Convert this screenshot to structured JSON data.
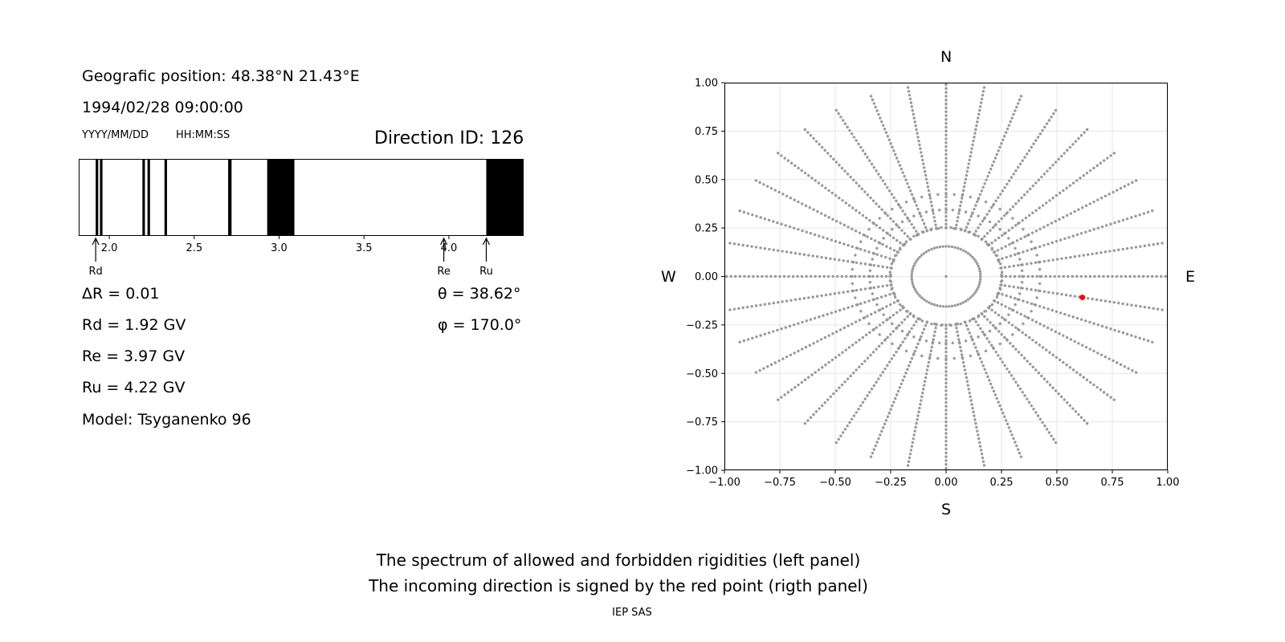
{
  "left_panel": {
    "position": "Geografic position: 48.38°N 21.43°E",
    "datetime": "1994/02/28 09:00:00",
    "date_format": "YYYY/MM/DD",
    "time_format": "HH:MM:SS",
    "direction_id": "Direction ID: 126",
    "delta_r": "ΔR = 0.01",
    "rd": "Rd = 1.92 GV",
    "re": "Re = 3.97 GV",
    "ru": "Ru = 4.22 GV",
    "model": "Model: Tsyganenko 96",
    "theta": "θ = 38.62°",
    "phi": "φ = 170.0°",
    "markers": [
      {
        "label": "Rd",
        "value": 1.92
      },
      {
        "label": "Re",
        "value": 3.97
      },
      {
        "label": "Ru",
        "value": 4.22
      }
    ]
  },
  "right_panel": {
    "north": "N",
    "south": "S",
    "west": "W",
    "east": "E"
  },
  "caption": {
    "line1": "The spectrum of allowed and forbidden rigidities (left panel)",
    "line2": "The incoming direction is signed by the red point (rigth panel)",
    "credit": "IEP SAS"
  },
  "chart_data": [
    {
      "type": "bar",
      "xlim": [
        1.82,
        4.44
      ],
      "xticks": [
        "2.0",
        "2.5",
        "3.0",
        "3.5",
        "4.0"
      ],
      "xtick_values": [
        2.0,
        2.5,
        3.0,
        3.5,
        4.0
      ],
      "forbidden_bands": [
        [
          1.92,
          1.935
        ],
        [
          1.945,
          1.96
        ],
        [
          2.195,
          2.21
        ],
        [
          2.225,
          2.24
        ],
        [
          2.325,
          2.34
        ],
        [
          2.7,
          2.72
        ],
        [
          2.93,
          3.09
        ],
        [
          4.22,
          4.44
        ]
      ],
      "colors": {
        "forbidden": "#000000",
        "allowed": "#ffffff"
      }
    },
    {
      "type": "scatter",
      "xlim": [
        -1.0,
        1.0
      ],
      "ylim": [
        -1.0,
        1.0
      ],
      "xticks": [
        "−1.00",
        "−0.75",
        "−0.50",
        "−0.25",
        "0.00",
        "0.25",
        "0.50",
        "0.75",
        "1.00"
      ],
      "yticks": [
        "1.00",
        "0.75",
        "0.50",
        "0.25",
        "0.00",
        "−0.25",
        "−0.50",
        "−0.75",
        "−1.00"
      ],
      "tick_values": [
        -1.0,
        -0.75,
        -0.5,
        -0.25,
        0.0,
        0.25,
        0.5,
        0.75,
        1.0
      ],
      "grid": true,
      "grid_spec": {
        "radial_directions_deg_step": 10,
        "radial_min": 0.25,
        "radial_max": 1.0,
        "radial_step": 0.02,
        "theta_rings_deg": [
          15,
          25,
          35,
          45
        ],
        "ring_step_deg": 5,
        "polar_circle_radius": 0.25,
        "circle_step_deg": 8
      },
      "grid_color": "#999999",
      "highlight": {
        "x": 0.615,
        "y": -0.108,
        "color": "#ff0000"
      }
    }
  ]
}
